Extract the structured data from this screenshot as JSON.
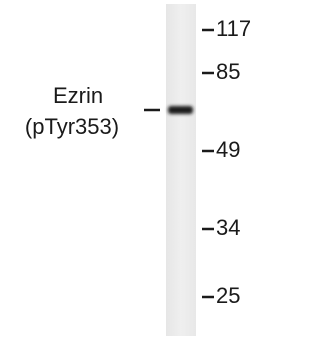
{
  "target": {
    "protein": "Ezrin",
    "site": "(pTyr353)"
  },
  "markers": [
    "117",
    "85",
    "49",
    "34",
    "25"
  ]
}
